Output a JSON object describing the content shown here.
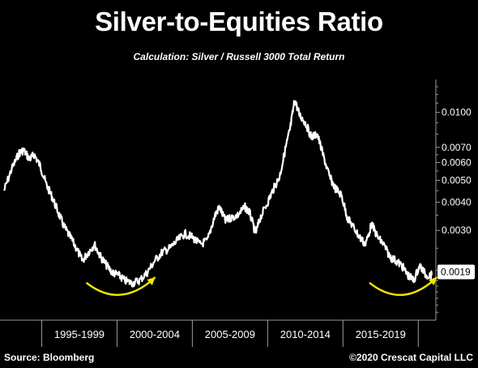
{
  "chart_data": {
    "type": "line",
    "title": "Silver-to-Equities Ratio",
    "subtitle": "Calculation: Silver / Russell 3000 Total Return",
    "scale": "log",
    "ylim": [
      0.0012,
      0.014
    ],
    "y_ticks": [
      {
        "value": 0.01,
        "label": "0.0100"
      },
      {
        "value": 0.007,
        "label": "0.0070"
      },
      {
        "value": 0.006,
        "label": "0.0060"
      },
      {
        "value": 0.005,
        "label": "0.0050"
      },
      {
        "value": 0.004,
        "label": "0.0040"
      },
      {
        "value": 0.003,
        "label": "0.0030"
      }
    ],
    "last_value": {
      "value": 0.0019,
      "label": "0.0019"
    },
    "x_range": [
      1992.0,
      2020.4
    ],
    "x_period_labels": [
      "1995-1999",
      "2000-2004",
      "2005-2009",
      "2010-2014",
      "2015-2019"
    ],
    "x_period_bounds": [
      1994.5,
      1999.5,
      2004.5,
      2009.5,
      2014.5,
      2019.5
    ],
    "series": [
      {
        "color": "#ffffff",
        "points": [
          [
            1992.0,
            0.0045
          ],
          [
            1992.5,
            0.0056
          ],
          [
            1993.0,
            0.0066
          ],
          [
            1993.3,
            0.0068
          ],
          [
            1993.7,
            0.0062
          ],
          [
            1994.0,
            0.0065
          ],
          [
            1994.4,
            0.0058
          ],
          [
            1994.8,
            0.0048
          ],
          [
            1995.2,
            0.0042
          ],
          [
            1995.6,
            0.0036
          ],
          [
            1996.0,
            0.0031
          ],
          [
            1996.4,
            0.0028
          ],
          [
            1996.8,
            0.0025
          ],
          [
            1997.2,
            0.0022
          ],
          [
            1997.6,
            0.0024
          ],
          [
            1998.0,
            0.0026
          ],
          [
            1998.4,
            0.0023
          ],
          [
            1998.8,
            0.0021
          ],
          [
            1999.2,
            0.00195
          ],
          [
            1999.6,
            0.0019
          ],
          [
            2000.0,
            0.0018
          ],
          [
            2000.5,
            0.00175
          ],
          [
            2001.0,
            0.0018
          ],
          [
            2001.5,
            0.00195
          ],
          [
            2002.0,
            0.0022
          ],
          [
            2002.5,
            0.0024
          ],
          [
            2003.0,
            0.0025
          ],
          [
            2003.5,
            0.0027
          ],
          [
            2004.0,
            0.0029
          ],
          [
            2004.5,
            0.0028
          ],
          [
            2005.0,
            0.0026
          ],
          [
            2005.5,
            0.0027
          ],
          [
            2006.0,
            0.0035
          ],
          [
            2006.3,
            0.0038
          ],
          [
            2006.7,
            0.0033
          ],
          [
            2007.0,
            0.0034
          ],
          [
            2007.5,
            0.0035
          ],
          [
            2008.0,
            0.0038
          ],
          [
            2008.3,
            0.0036
          ],
          [
            2008.7,
            0.0029
          ],
          [
            2009.0,
            0.0034
          ],
          [
            2009.5,
            0.004
          ],
          [
            2009.9,
            0.0046
          ],
          [
            2010.3,
            0.0052
          ],
          [
            2010.7,
            0.007
          ],
          [
            2011.0,
            0.0085
          ],
          [
            2011.3,
            0.0114
          ],
          [
            2011.6,
            0.0098
          ],
          [
            2012.0,
            0.009
          ],
          [
            2012.4,
            0.0078
          ],
          [
            2012.8,
            0.008
          ],
          [
            2013.2,
            0.0064
          ],
          [
            2013.6,
            0.0052
          ],
          [
            2014.0,
            0.0046
          ],
          [
            2014.4,
            0.0043
          ],
          [
            2014.8,
            0.0034
          ],
          [
            2015.2,
            0.0031
          ],
          [
            2015.6,
            0.0028
          ],
          [
            2016.0,
            0.0026
          ],
          [
            2016.4,
            0.0032
          ],
          [
            2016.8,
            0.0028
          ],
          [
            2017.2,
            0.0026
          ],
          [
            2017.6,
            0.0023
          ],
          [
            2018.0,
            0.0022
          ],
          [
            2018.4,
            0.0021
          ],
          [
            2018.8,
            0.0019
          ],
          [
            2019.2,
            0.0018
          ],
          [
            2019.6,
            0.0021
          ],
          [
            2020.0,
            0.0019
          ],
          [
            2020.4,
            0.0019
          ]
        ]
      }
    ],
    "annotations": [
      {
        "type": "arrow",
        "color": "#f2e600",
        "from": [
          1997.5,
          0.00175
        ],
        "to": [
          2002.0,
          0.00185
        ]
      },
      {
        "type": "arrow",
        "color": "#f2e600",
        "from": [
          2016.3,
          0.00175
        ],
        "to": [
          2020.7,
          0.00185
        ]
      }
    ]
  },
  "footer": {
    "source": "Source: Bloomberg",
    "copyright": "©2020 Crescat Capital LLC"
  },
  "colors": {
    "background": "#000000",
    "line": "#ffffff",
    "arrow": "#f2e600",
    "axis": "#9a9a9a"
  }
}
